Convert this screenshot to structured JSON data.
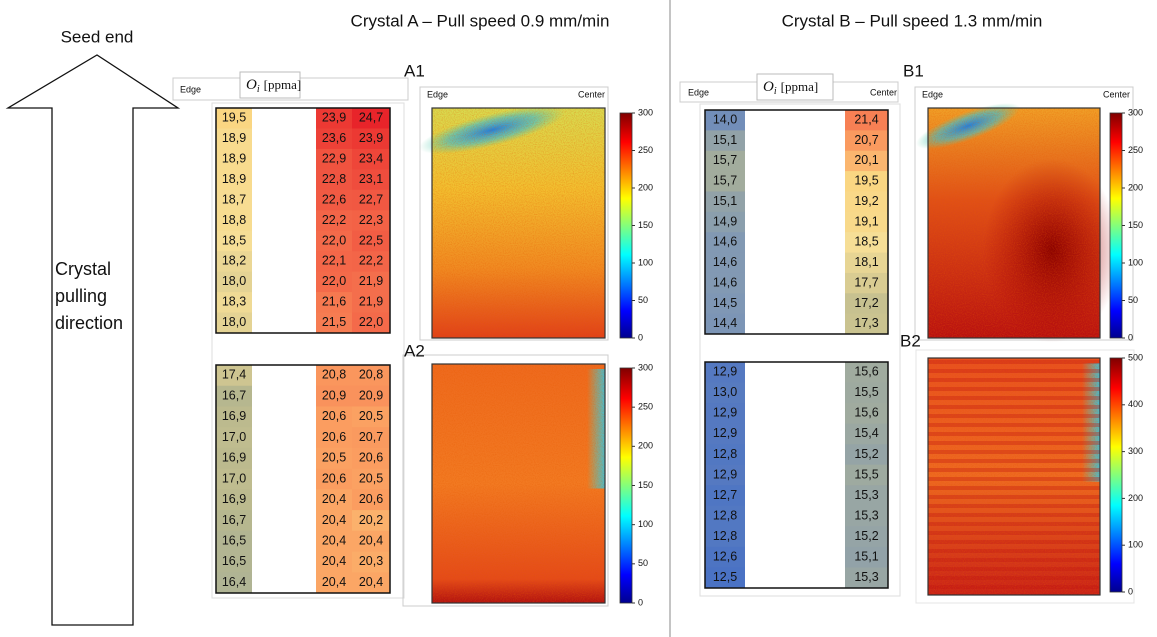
{
  "arrow": {
    "top_label": "Seed end",
    "label_lines": [
      "Crystal",
      "pulling",
      "direction"
    ]
  },
  "crystals": [
    {
      "title": "Crystal A – Pull speed 0.9 mm/min",
      "header": {
        "edge": "Edge",
        "symbol": "O",
        "subscript": "i",
        "unit": "[ppma]"
      },
      "tables": [
        {
          "rows": [
            [
              "19,5",
              "23,9",
              "24,7"
            ],
            [
              "18,9",
              "23,6",
              "23,9"
            ],
            [
              "18,9",
              "22,9",
              "23,4"
            ],
            [
              "18,9",
              "22,8",
              "23,1"
            ],
            [
              "18,7",
              "22,6",
              "22,7"
            ],
            [
              "18,8",
              "22,2",
              "22,3"
            ],
            [
              "18,5",
              "22,0",
              "22,5"
            ],
            [
              "18,2",
              "22,1",
              "22,2"
            ],
            [
              "18,0",
              "22,0",
              "21,9"
            ],
            [
              "18,3",
              "21,6",
              "21,9"
            ],
            [
              "18,0",
              "21,5",
              "22,0"
            ]
          ]
        },
        {
          "rows": [
            [
              "17,4",
              "20,8",
              "20,8"
            ],
            [
              "16,7",
              "20,9",
              "20,9"
            ],
            [
              "16,9",
              "20,6",
              "20,5"
            ],
            [
              "17,0",
              "20,6",
              "20,7"
            ],
            [
              "16,9",
              "20,5",
              "20,6"
            ],
            [
              "17,0",
              "20,6",
              "20,5"
            ],
            [
              "16,9",
              "20,4",
              "20,6"
            ],
            [
              "16,7",
              "20,4",
              "20,2"
            ],
            [
              "16,5",
              "20,4",
              "20,4"
            ],
            [
              "16,5",
              "20,4",
              "20,3"
            ],
            [
              "16,4",
              "20,4",
              "20,4"
            ]
          ]
        }
      ],
      "maps": [
        {
          "label": "A1",
          "edge": "Edge",
          "center": "Center",
          "colorbar": {
            "lim": [
              0,
              300
            ],
            "ticks": [
              0,
              50,
              100,
              150,
              200,
              250,
              300
            ]
          }
        },
        {
          "label": "A2",
          "colorbar": {
            "lim": [
              0,
              300
            ],
            "ticks": [
              0,
              50,
              100,
              150,
              200,
              250,
              300
            ]
          }
        }
      ]
    },
    {
      "title": "Crystal B – Pull speed 1.3 mm/min",
      "header": {
        "edge": "Edge",
        "symbol": "O",
        "subscript": "i",
        "unit": "[ppma]",
        "center": "Center"
      },
      "tables": [
        {
          "rows": [
            [
              "14,0",
              "21,4"
            ],
            [
              "15,1",
              "20,7"
            ],
            [
              "15,7",
              "20,1"
            ],
            [
              "15,7",
              "19,5"
            ],
            [
              "15,1",
              "19,2"
            ],
            [
              "14,9",
              "19,1"
            ],
            [
              "14,6",
              "18,5"
            ],
            [
              "14,6",
              "18,1"
            ],
            [
              "14,6",
              "17,7"
            ],
            [
              "14,5",
              "17,2"
            ],
            [
              "14,4",
              "17,3"
            ]
          ]
        },
        {
          "rows": [
            [
              "12,9",
              "15,6"
            ],
            [
              "13,0",
              "15,5"
            ],
            [
              "12,9",
              "15,6"
            ],
            [
              "12,9",
              "15,4"
            ],
            [
              "12,8",
              "15,2"
            ],
            [
              "12,9",
              "15,5"
            ],
            [
              "12,7",
              "15,3"
            ],
            [
              "12,8",
              "15,3"
            ],
            [
              "12,8",
              "15,2"
            ],
            [
              "12,6",
              "15,1"
            ],
            [
              "12,5",
              "15,3"
            ]
          ]
        }
      ],
      "maps": [
        {
          "label": "B1",
          "edge": "Edge",
          "center": "Center",
          "colorbar": {
            "lim": [
              0,
              300
            ],
            "ticks": [
              0,
              50,
              100,
              150,
              200,
              250,
              300
            ]
          }
        },
        {
          "label": "B2",
          "colorbar": {
            "lim": [
              0,
              500
            ],
            "ticks": [
              0,
              100,
              200,
              300,
              400,
              500
            ]
          }
        }
      ]
    }
  ]
}
